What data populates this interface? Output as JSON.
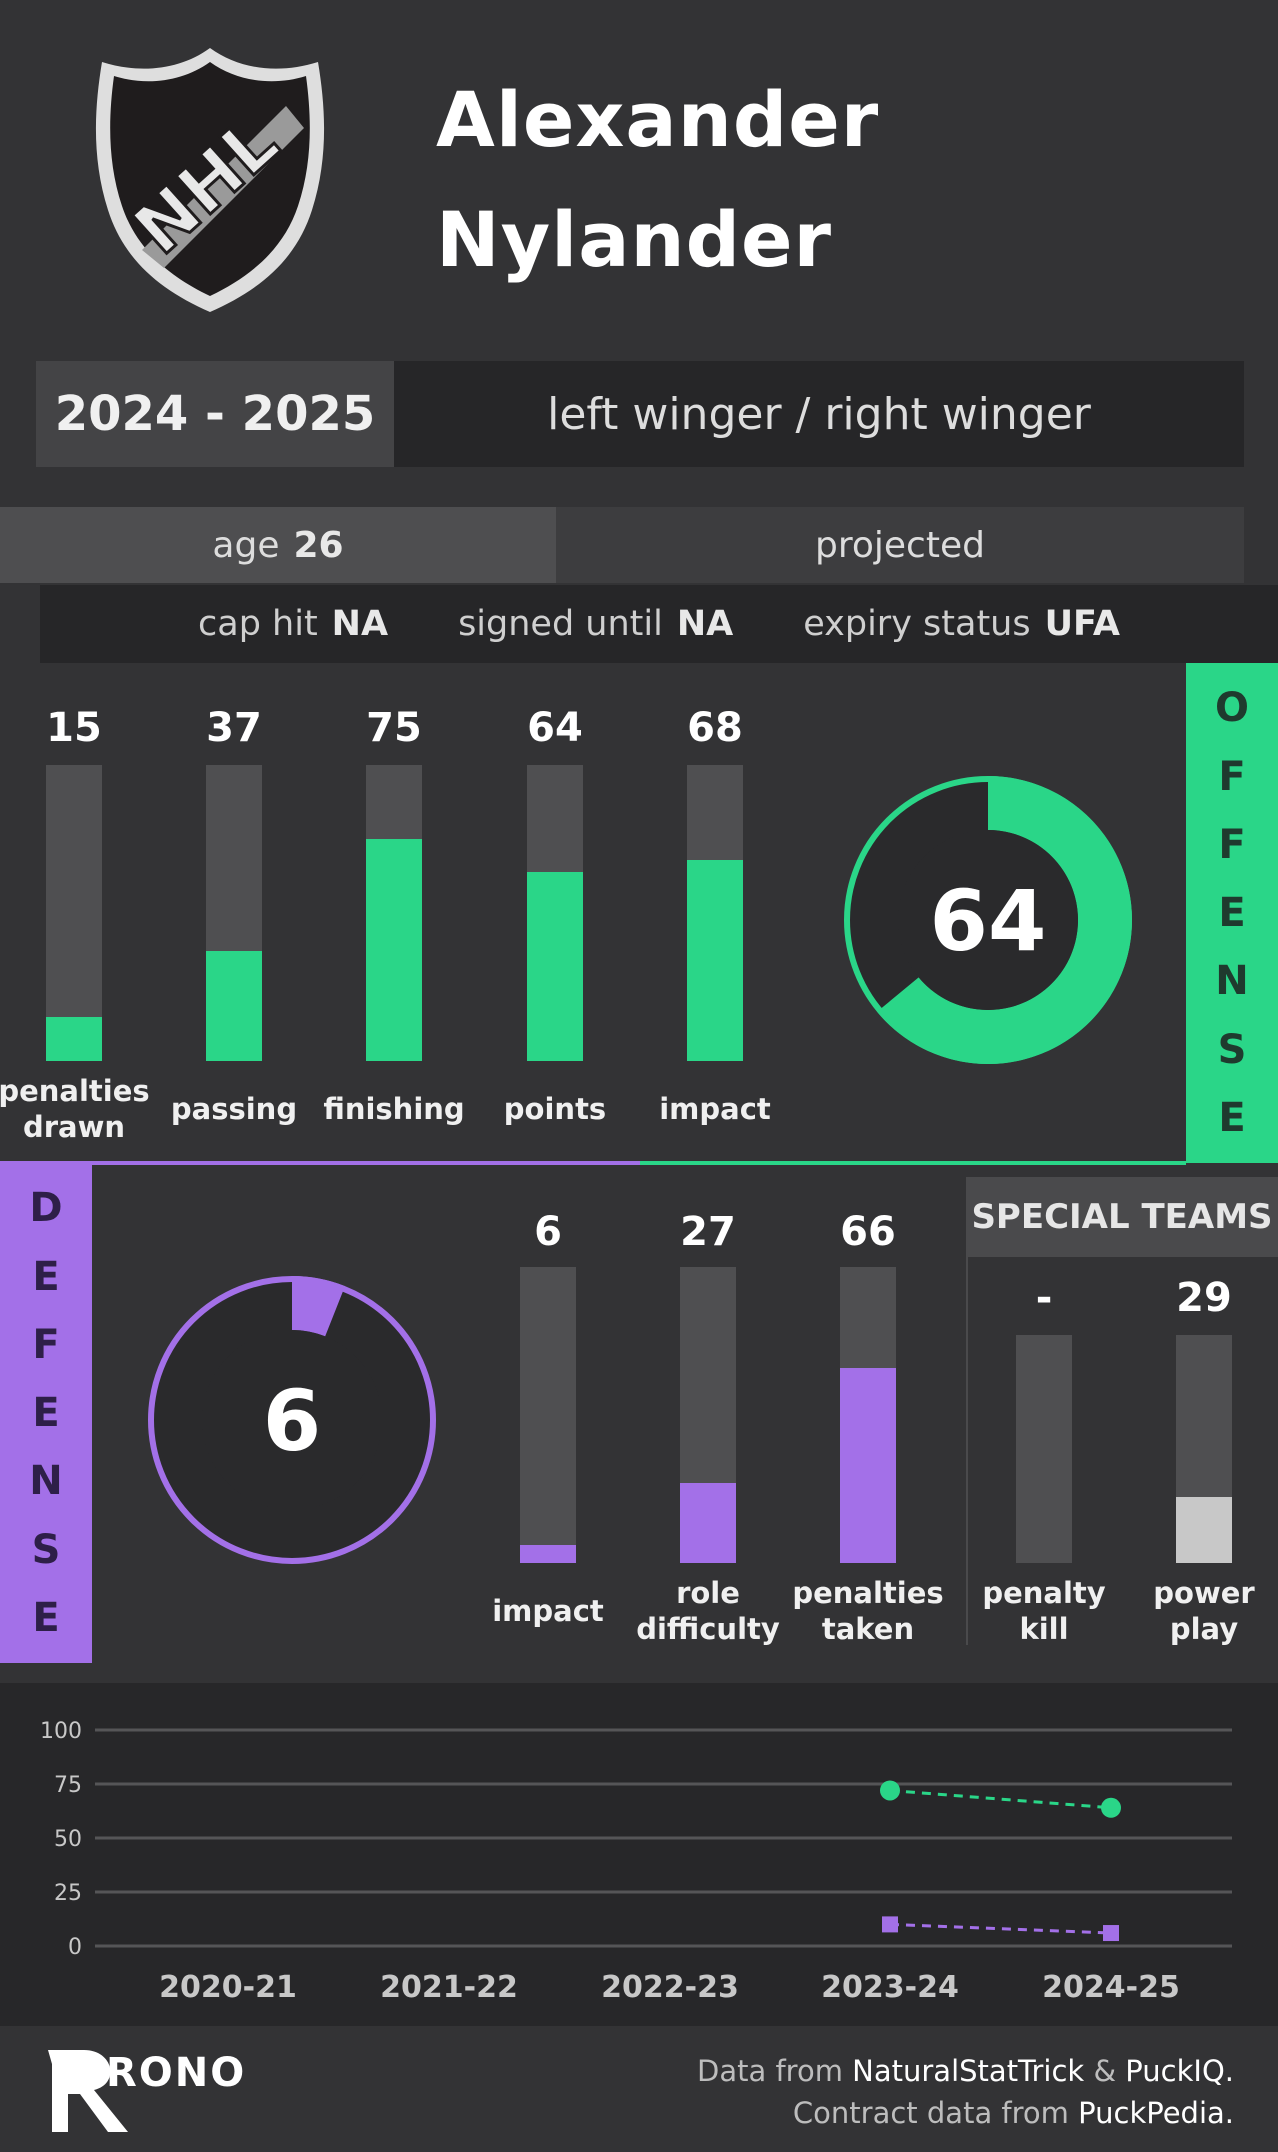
{
  "header": {
    "logo_text": "NHL",
    "first_name": "Alexander",
    "last_name": "Nylander",
    "season": "2024 - 2025",
    "position": "left winger / right winger"
  },
  "info": {
    "age_label": "age",
    "age_value": "26",
    "projected_label": "projected",
    "cap_hit_label": "cap hit",
    "cap_hit_value": "NA",
    "signed_until_label": "signed until",
    "signed_until_value": "NA",
    "expiry_label": "expiry status",
    "expiry_value": "UFA"
  },
  "offense": {
    "side_label": "OFFENSE",
    "color": "#2ad688",
    "overall": 64,
    "bars": [
      {
        "value": 15,
        "label1": "penalties",
        "label2": "drawn"
      },
      {
        "value": 37,
        "label1": "passing",
        "label2": ""
      },
      {
        "value": 75,
        "label1": "finishing",
        "label2": ""
      },
      {
        "value": 64,
        "label1": "points",
        "label2": ""
      },
      {
        "value": 68,
        "label1": "impact",
        "label2": ""
      }
    ]
  },
  "defense": {
    "side_label": "DEFENSE",
    "color": "#a370e8",
    "overall": 6,
    "bars": [
      {
        "value": 6,
        "label1": "impact",
        "label2": ""
      },
      {
        "value": 27,
        "label1": "role",
        "label2": "difficulty"
      },
      {
        "value": 66,
        "label1": "penalties",
        "label2": "taken"
      }
    ]
  },
  "special_teams": {
    "title": "SPECIAL TEAMS",
    "color": "#c8c8c8",
    "bars": [
      {
        "display": "-",
        "value": 0,
        "label1": "penalty",
        "label2": "kill"
      },
      {
        "display": "29",
        "value": 29,
        "label1": "power",
        "label2": "play"
      }
    ]
  },
  "chart_data": {
    "type": "line",
    "categories": [
      "2020-21",
      "2021-22",
      "2022-23",
      "2023-24",
      "2024-25"
    ],
    "yticks": [
      0,
      25,
      50,
      75,
      100
    ],
    "ylim": [
      0,
      100
    ],
    "grid": true,
    "series": [
      {
        "key": "offense",
        "color": "#2ad688",
        "marker": "circle",
        "values": [
          null,
          null,
          null,
          72,
          64
        ]
      },
      {
        "key": "defense",
        "color": "#a370e8",
        "marker": "square",
        "values": [
          null,
          null,
          null,
          10,
          6
        ]
      }
    ]
  },
  "footer": {
    "brand": "RONO",
    "line1_pre": "Data from",
    "source1": "NaturalStatTrick",
    "amp": "&",
    "source2": "PuckIQ.",
    "line2_pre": "Contract data from",
    "source3": "PuckPedia."
  }
}
